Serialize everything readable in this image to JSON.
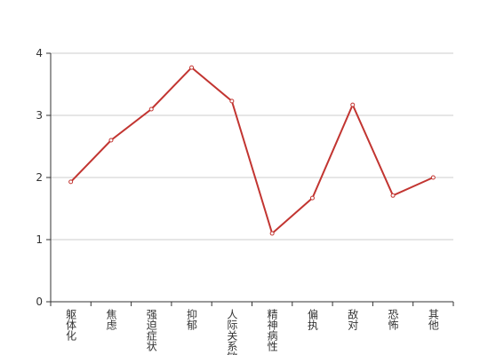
{
  "chart_data": {
    "type": "line",
    "categories": [
      "躯体化",
      "焦虑",
      "强迫症状",
      "抑郁",
      "人际关系敏感",
      "精神病性",
      "偏执",
      "敌对",
      "恐怖",
      "其他"
    ],
    "values": [
      1.93,
      2.6,
      3.1,
      3.77,
      3.23,
      1.1,
      1.67,
      3.17,
      1.71,
      2.0
    ],
    "color": "#c23531",
    "ylim": [
      0,
      4
    ],
    "yticks": [
      0,
      1,
      2,
      3,
      4
    ],
    "grid": true
  }
}
